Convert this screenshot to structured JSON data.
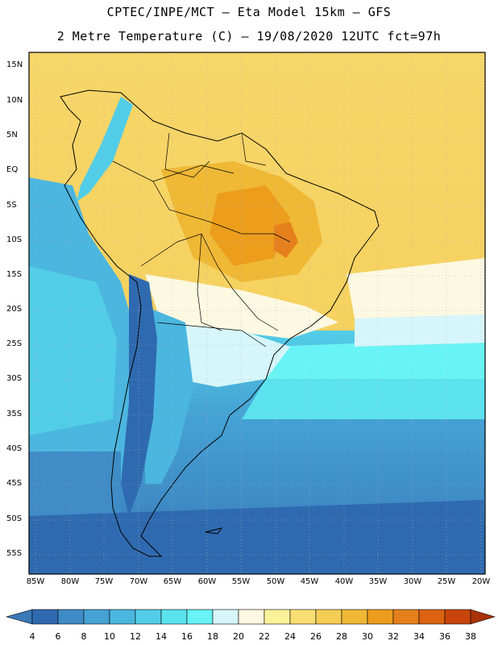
{
  "title": {
    "line1": "CPTEC/INPE/MCT —  Eta Model 15km — GFS",
    "line2": "2 Metre Temperature (C) — 19/08/2020 12UTC fct=97h"
  },
  "lat_labels": [
    "15N",
    "10N",
    "5N",
    "EQ",
    "5S",
    "10S",
    "15S",
    "20S",
    "25S",
    "30S",
    "35S",
    "40S",
    "45S",
    "50S",
    "55S"
  ],
  "lon_labels": [
    "85W",
    "80W",
    "75W",
    "70W",
    "65W",
    "60W",
    "55W",
    "50W",
    "45W",
    "40W",
    "35W",
    "30W",
    "25W",
    "20W"
  ],
  "colorbar": {
    "labels": [
      "4",
      "6",
      "8",
      "10",
      "12",
      "14",
      "16",
      "18",
      "20",
      "22",
      "24",
      "26",
      "28",
      "30",
      "32",
      "34",
      "36",
      "38"
    ],
    "colors": [
      "#3a78b8",
      "#2f6ab0",
      "#3f8cc6",
      "#45a2d4",
      "#4bb6df",
      "#52cde8",
      "#5ae3ef",
      "#68f4f6",
      "#d6f6fb",
      "#fdf8e2",
      "#fcf29a",
      "#f9df72",
      "#f5cd55",
      "#efb835",
      "#ec9d1c",
      "#e6801c",
      "#dd6212",
      "#c8440a",
      "#a83208"
    ]
  }
}
